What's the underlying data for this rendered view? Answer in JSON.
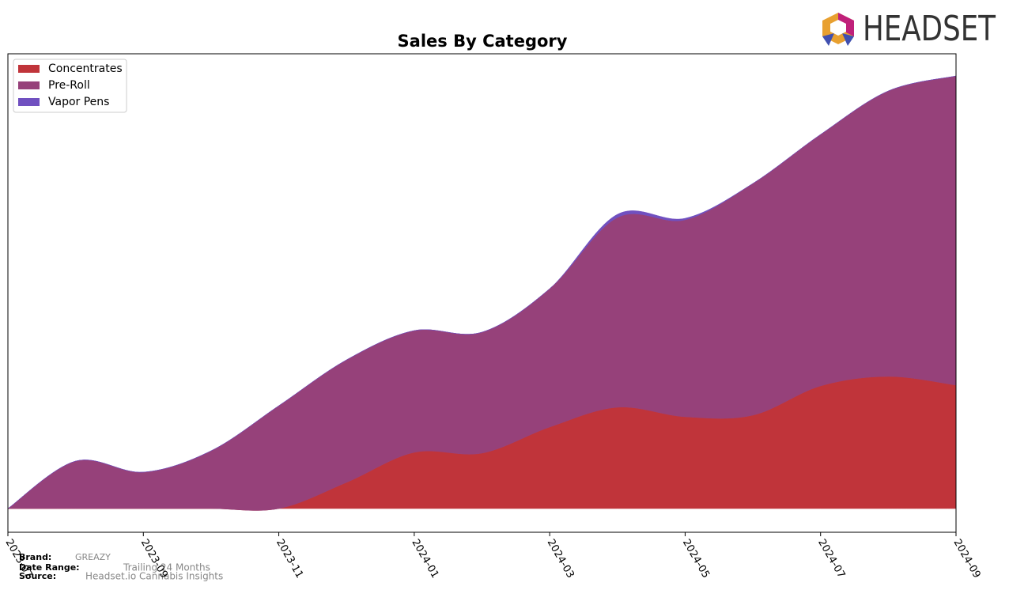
{
  "chart_data": {
    "type": "stacked-area",
    "title": "Sales By Category",
    "x": [
      "2023-07",
      "2023-08",
      "2023-09",
      "2023-10",
      "2023-11",
      "2023-12",
      "2024-01",
      "2024-02",
      "2024-03",
      "2024-04",
      "2024-05",
      "2024-06",
      "2024-07",
      "2024-08",
      "2024-09"
    ],
    "xticks": [
      "2023-07",
      "2023-09",
      "2023-11",
      "2024-01",
      "2024-03",
      "2024-05",
      "2024-07",
      "2024-09"
    ],
    "ylim": [
      -30,
      575
    ],
    "legend": "upper left",
    "series": [
      {
        "name": "Concentrates",
        "color": "#c0343a",
        "values": [
          0,
          0,
          0,
          0,
          0,
          33,
          71,
          70,
          103,
          128,
          116,
          118,
          155,
          167,
          156
        ]
      },
      {
        "name": "Pre-Roll",
        "color": "#96417a",
        "values": [
          0,
          60,
          46,
          73,
          130,
          155,
          154,
          153,
          175,
          240,
          249,
          293,
          318,
          361,
          391
        ]
      },
      {
        "name": "Vapor Pens",
        "color": "#7050c0",
        "values": [
          0,
          0,
          0,
          0,
          0,
          0,
          0,
          0,
          0,
          4,
          2,
          0,
          0,
          0,
          0
        ]
      }
    ]
  },
  "logo": "HEADSET",
  "footer": {
    "brand_label": "Brand:",
    "brand": "GREAZY",
    "range_label": "Date Range:",
    "range": "Trailing 24 Months",
    "source_label": "Source:",
    "source": "Headset.io Cannabis Insights"
  }
}
